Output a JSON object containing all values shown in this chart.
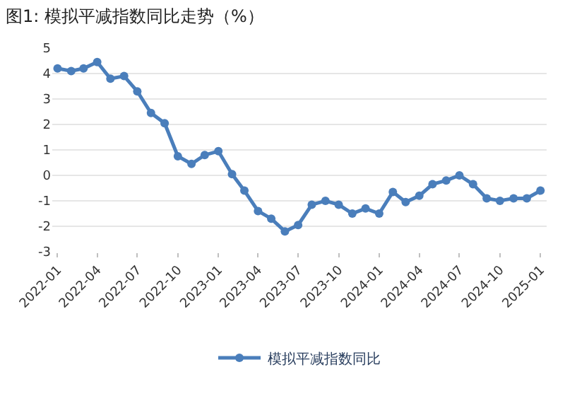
{
  "chart_data": {
    "type": "line",
    "title": "图1: 模拟平减指数同比走势（%）",
    "x": [
      "2022-01",
      "2022-02",
      "2022-03",
      "2022-04",
      "2022-05",
      "2022-06",
      "2022-07",
      "2022-08",
      "2022-09",
      "2022-10",
      "2022-11",
      "2022-12",
      "2023-01",
      "2023-02",
      "2023-03",
      "2023-04",
      "2023-05",
      "2023-06",
      "2023-07",
      "2023-08",
      "2023-09",
      "2023-10",
      "2023-11",
      "2023-12",
      "2024-01",
      "2024-02",
      "2024-03",
      "2024-04",
      "2024-05",
      "2024-06",
      "2024-07",
      "2024-08",
      "2024-09",
      "2024-10",
      "2024-11",
      "2024-12",
      "2025-01"
    ],
    "series": [
      {
        "name": "模拟平减指数同比",
        "color": "#4a7ebb",
        "values": [
          4.2,
          4.1,
          4.2,
          4.45,
          3.8,
          3.9,
          3.3,
          2.45,
          2.05,
          0.75,
          0.45,
          0.8,
          0.95,
          0.05,
          -0.6,
          -1.4,
          -1.7,
          -2.2,
          -1.95,
          -1.15,
          -1.0,
          -1.15,
          -1.5,
          -1.3,
          -1.5,
          -0.65,
          -1.05,
          -0.8,
          -0.35,
          -0.2,
          0.0,
          -0.35,
          -0.9,
          -1.0,
          -0.9,
          -0.9,
          -0.6
        ]
      }
    ],
    "xlim": [
      "2021-12-20",
      "2025-01-15"
    ],
    "xticks": [
      "2022-01",
      "2022-04",
      "2022-07",
      "2022-10",
      "2023-01",
      "2023-04",
      "2023-07",
      "2023-10",
      "2024-01",
      "2024-04",
      "2024-07",
      "2024-10",
      "2025-01"
    ],
    "ylim": [
      -3,
      5
    ],
    "yticks": [
      -3,
      -2,
      -1,
      0,
      1,
      2,
      3,
      4,
      5
    ],
    "grid": "y",
    "legend": "bottom",
    "marker": "circle",
    "line_style": "solid"
  }
}
